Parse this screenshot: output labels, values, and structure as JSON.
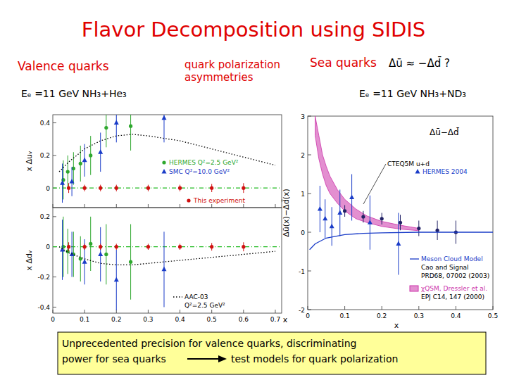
{
  "slide": {
    "title": "Flavor Decomposition using SIDIS",
    "valence": "Valence quarks",
    "valence_setup": "Eₑ =11 GeV NH₃+He₃",
    "middle": [
      "quark polarization",
      "asymmetries"
    ],
    "sea": "Sea quarks",
    "sea_formula": "Δū ≈ −Δd̄ ?",
    "sea_setup": "Eₑ =11 GeV NH₃+ND₃",
    "box": [
      "Unprecedented precision for valence quarks, discriminating",
      "power for sea quarks",
      "test models for quark polarization"
    ]
  },
  "chart_data": [
    {
      "type": "scatter",
      "y_label": "x Δuᵥ",
      "xlim": [
        0,
        0.72
      ],
      "ylim": [
        -0.12,
        0.45
      ],
      "xticks": [
        0,
        0.1,
        0.2,
        0.3,
        0.4,
        0.5,
        0.6,
        0.7
      ],
      "yticks": [
        0,
        0.2,
        0.4
      ],
      "tick_labels": "y",
      "series": [
        {
          "type": "line",
          "line_style": "dashdot",
          "color": "#22bb22",
          "x": [
            0,
            0.72
          ],
          "values": [
            0,
            0
          ]
        },
        {
          "name": "HERMES Q²=2.5 GeV²",
          "type": "scatter",
          "marker": "circle",
          "color": "#2ea82e",
          "x": [
            0.033,
            0.047,
            0.065,
            0.087,
            0.119,
            0.168,
            0.245
          ],
          "values": [
            0.05,
            0.1,
            0.12,
            0.15,
            0.2,
            0.37,
            0.38
          ],
          "errors": [
            0.12,
            0.1,
            0.1,
            0.11,
            0.12,
            0.12,
            0.15
          ]
        },
        {
          "name": "SMC Q²=10.0 GeV²",
          "type": "scatter",
          "marker": "triangle",
          "color": "#1a3cc8",
          "x": [
            0.03,
            0.06,
            0.1,
            0.15,
            0.2,
            0.35
          ],
          "values": [
            0.03,
            0.04,
            0.17,
            0.22,
            0.4,
            0.43
          ],
          "errors": [
            0.12,
            0.09,
            0.1,
            0.12,
            0.12,
            0.15
          ]
        },
        {
          "name": "This experiment",
          "type": "scatter",
          "marker": "circle",
          "color": "#d01010",
          "x": [
            0.05,
            0.1,
            0.15,
            0.2,
            0.3,
            0.4,
            0.5,
            0.6
          ],
          "values": [
            0,
            0,
            0,
            0,
            0,
            0,
            0,
            0
          ],
          "errors": [
            0.03,
            0.02,
            0.02,
            0.02,
            0.02,
            0.02,
            0.025,
            0.03
          ]
        },
        {
          "type": "line",
          "line_style": "dotted",
          "color": "#000000",
          "x": [
            0.02,
            0.05,
            0.1,
            0.15,
            0.2,
            0.25,
            0.3,
            0.4,
            0.5,
            0.6,
            0.7
          ],
          "values": [
            0.1,
            0.16,
            0.24,
            0.29,
            0.32,
            0.33,
            0.32,
            0.29,
            0.24,
            0.19,
            0.14
          ]
        }
      ]
    },
    {
      "type": "scatter",
      "x_label": "x",
      "y_label": "x Δdᵥ",
      "xlim": [
        0,
        0.72
      ],
      "ylim": [
        -0.44,
        0.26
      ],
      "xticks": [
        0,
        0.1,
        0.2,
        0.3,
        0.4,
        0.5,
        0.6,
        0.7
      ],
      "yticks": [
        -0.4,
        -0.2,
        0,
        0.2
      ],
      "tick_labels": true,
      "annotations": [
        "Q²=2.5 GeV²"
      ],
      "series": [
        {
          "type": "line",
          "line_style": "dashdot",
          "color": "#22bb22",
          "x": [
            0,
            0.72
          ],
          "values": [
            0,
            0
          ]
        },
        {
          "type": "scatter",
          "marker": "circle",
          "color": "#2ea82e",
          "x": [
            0.033,
            0.047,
            0.065,
            0.087,
            0.119,
            0.168,
            0.245
          ],
          "values": [
            0,
            -0.03,
            -0.05,
            -0.08,
            0.02,
            -0.05,
            -0.1
          ],
          "errors": [
            0.2,
            0.15,
            0.15,
            0.15,
            0.18,
            0.2,
            0.25
          ]
        },
        {
          "type": "scatter",
          "marker": "triangle",
          "color": "#1a3cc8",
          "x": [
            0.03,
            0.06,
            0.1,
            0.15,
            0.2,
            0.35
          ],
          "values": [
            -0.02,
            -0.05,
            -0.1,
            -0.05,
            -0.22,
            -0.15
          ],
          "errors": [
            0.2,
            0.15,
            0.15,
            0.18,
            0.2,
            0.25
          ]
        },
        {
          "type": "scatter",
          "marker": "circle",
          "color": "#d01010",
          "x": [
            0.05,
            0.1,
            0.15,
            0.2,
            0.3,
            0.4,
            0.5,
            0.6
          ],
          "values": [
            0,
            0,
            0,
            0,
            0,
            0,
            0,
            0
          ],
          "errors": [
            0.03,
            0.02,
            0.02,
            0.02,
            0.02,
            0.02,
            0.025,
            0.03
          ]
        },
        {
          "name": "AAC-03",
          "type": "line",
          "line_style": "dotted",
          "color": "#000000",
          "x": [
            0.02,
            0.05,
            0.1,
            0.15,
            0.2,
            0.25,
            0.3,
            0.4,
            0.5,
            0.6,
            0.7
          ],
          "values": [
            0,
            -0.04,
            -0.08,
            -0.11,
            -0.12,
            -0.12,
            -0.11,
            -0.09,
            -0.07,
            -0.05,
            -0.03
          ]
        }
      ]
    },
    {
      "type": "scatter",
      "x_label": "x",
      "y_label": "Δū(x)−Δd̄(x)",
      "xlim": [
        0,
        0.5
      ],
      "ylim": [
        -2,
        3
      ],
      "xticks": [
        0,
        0.1,
        0.2,
        0.3,
        0.4,
        0.5
      ],
      "yticks": [
        -2,
        -1,
        0,
        1,
        2,
        3
      ],
      "tick_labels": true,
      "annotations": [
        "Δū−Δd̄",
        "CTEQ5M u+d",
        "Cao and Signal",
        "PRD68, 07002 (2003)",
        "EPJ C14, 147 (2000)"
      ],
      "series": [
        {
          "name": "χQSM, Dressler et al.",
          "type": "area",
          "color": "#cc33aa",
          "x": [
            0.02,
            0.03,
            0.04,
            0.05,
            0.06,
            0.08,
            0.1,
            0.13,
            0.16,
            0.2,
            0.25,
            0.3
          ],
          "values": [
            3,
            2.5,
            2,
            1.7,
            1.45,
            1.1,
            0.85,
            0.6,
            0.42,
            0.28,
            0.18,
            0.1
          ],
          "lower": [
            2.5,
            1.9,
            1.5,
            1.2,
            1,
            0.75,
            0.55,
            0.35,
            0.25,
            0.15,
            0.08,
            0.04
          ]
        },
        {
          "name": "HERMES 2004",
          "type": "scatter",
          "marker": "triangle",
          "color": "#1a3cc8",
          "x": [
            0.033,
            0.047,
            0.065,
            0.087,
            0.119,
            0.168,
            0.245
          ],
          "values": [
            0.6,
            0.35,
            0.15,
            0.5,
            0.9,
            0.25,
            -0.3
          ],
          "errors": [
            0.6,
            0.5,
            0.5,
            0.6,
            0.6,
            0.7,
            0.8
          ]
        },
        {
          "type": "scatter",
          "marker": "circle",
          "color": "#222266",
          "x": [
            0.1,
            0.15,
            0.2,
            0.25,
            0.3,
            0.35,
            0.4
          ],
          "values": [
            0.55,
            0.4,
            0.35,
            0.25,
            0.1,
            0.05,
            0
          ],
          "errors": [
            0.15,
            0.15,
            0.15,
            0.2,
            0.2,
            0.25,
            0.3
          ]
        },
        {
          "name": "Meson Cloud Model",
          "type": "line",
          "line_style": "solid",
          "color": "#1a3cc8",
          "x": [
            0.005,
            0.02,
            0.05,
            0.1,
            0.15,
            0.2,
            0.3,
            0.4,
            0.5
          ],
          "values": [
            -0.45,
            -0.3,
            -0.15,
            -0.06,
            -0.03,
            -0.015,
            0,
            0,
            0
          ]
        }
      ]
    }
  ]
}
